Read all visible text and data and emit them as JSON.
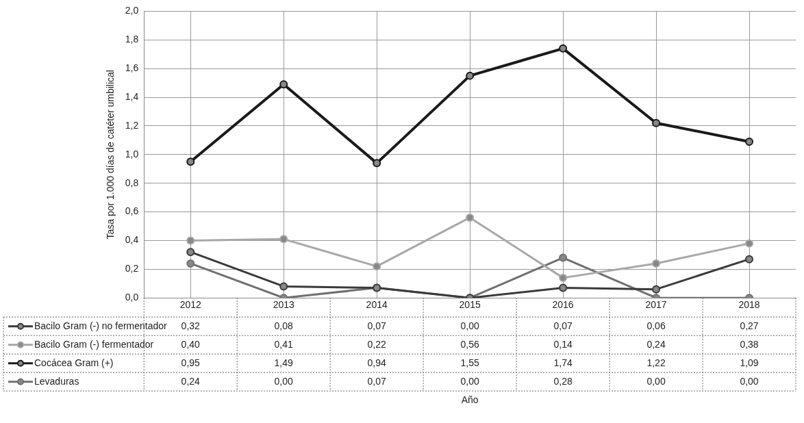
{
  "chart_data": {
    "type": "line",
    "ylabel": "Tasa por 1.000 días de catéter umbilical",
    "annotations": [
      "Año"
    ],
    "categories": [
      "2012",
      "2013",
      "2014",
      "2015",
      "2016",
      "2017",
      "2018"
    ],
    "series": [
      {
        "name": "Bacilo Gram (-) no fermentador",
        "color": "#3a3a3a",
        "values": [
          0.32,
          0.08,
          0.07,
          0.0,
          0.07,
          0.06,
          0.27
        ],
        "value_labels": [
          "0,32",
          "0,08",
          "0,07",
          "0,00",
          "0,07",
          "0,06",
          "0,27"
        ]
      },
      {
        "name": "Bacilo Gram (-) fermentador",
        "color": "#a8a8a8",
        "values": [
          0.4,
          0.41,
          0.22,
          0.56,
          0.14,
          0.24,
          0.38
        ],
        "value_labels": [
          "0,40",
          "0,41",
          "0,22",
          "0,56",
          "0,14",
          "0,24",
          "0,38"
        ]
      },
      {
        "name": "Cocácea Gram (+)",
        "color": "#1a1a1a",
        "values": [
          0.95,
          1.49,
          0.94,
          1.55,
          1.74,
          1.22,
          1.09
        ],
        "value_labels": [
          "0,95",
          "1,49",
          "0,94",
          "1,55",
          "1,74",
          "1,22",
          "1,09"
        ]
      },
      {
        "name": "Levaduras",
        "color": "#707070",
        "values": [
          0.24,
          0.0,
          0.07,
          0.0,
          0.28,
          0.0,
          0.0
        ],
        "value_labels": [
          "0,24",
          "0,00",
          "0,07",
          "0,00",
          "0,28",
          "0,00",
          "0,00"
        ]
      }
    ],
    "ylim": [
      0,
      2
    ],
    "yticks": [
      {
        "value": 0,
        "label": "0,0"
      },
      {
        "value": 0.2,
        "label": "0,2"
      },
      {
        "value": 0.4,
        "label": "0,4"
      },
      {
        "value": 0.6,
        "label": "0,6"
      },
      {
        "value": 0.8,
        "label": "0,8"
      },
      {
        "value": 1,
        "label": "1,0"
      },
      {
        "value": 1.2,
        "label": "1,2"
      },
      {
        "value": 1.4,
        "label": "1,4"
      },
      {
        "value": 1.6,
        "label": "1,6"
      },
      {
        "value": 1.8,
        "label": "1,8"
      },
      {
        "value": 2,
        "label": "2,0"
      }
    ],
    "grid": true,
    "marker": "circle",
    "line_style": "solid",
    "legend": "bottom"
  }
}
